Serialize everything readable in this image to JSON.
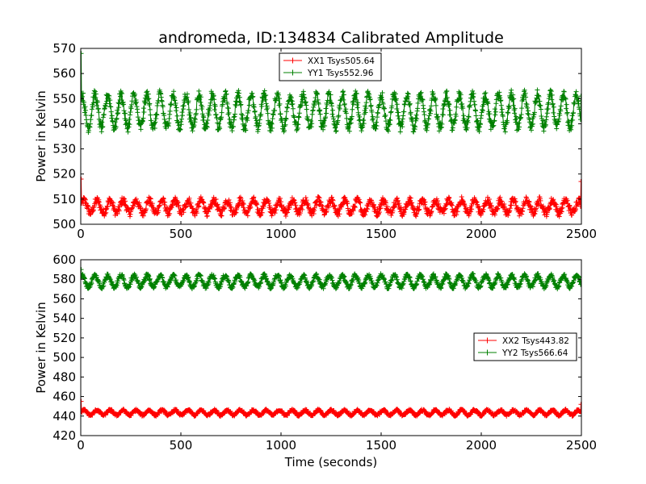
{
  "figure": {
    "title": "andromeda, ID:134834 Calibrated Amplitude",
    "xlabel": "Time (seconds)"
  },
  "chart_data": [
    {
      "type": "line",
      "title": "andromeda, ID:134834 Calibrated Amplitude",
      "xlabel": "",
      "ylabel": "Power in Kelvin",
      "xlim": [
        0,
        2500
      ],
      "ylim": [
        500,
        570
      ],
      "xticks": [
        "0",
        "500",
        "1000",
        "1500",
        "2000",
        "2500"
      ],
      "yticks": [
        "500",
        "510",
        "520",
        "530",
        "540",
        "550",
        "560",
        "570"
      ],
      "legend_position": "upper center",
      "marker": "+",
      "series": [
        {
          "name": "XX1 Tsys505.64",
          "color": "#ff0000",
          "mean": 507,
          "amplitude": 2.5,
          "period_s": 65,
          "noise": 1.5,
          "start_value": 518,
          "end_value": 517
        },
        {
          "name": "YY1 Tsys552.96",
          "color": "#008000",
          "mean": 545,
          "amplitude": 6.5,
          "period_s": 65,
          "noise": 2.0,
          "start_value": 568,
          "end_value": 551
        }
      ]
    },
    {
      "type": "line",
      "title": "",
      "xlabel": "Time (seconds)",
      "ylabel": "Power in Kelvin",
      "xlim": [
        0,
        2500
      ],
      "ylim": [
        420,
        600
      ],
      "xticks": [
        "0",
        "500",
        "1000",
        "1500",
        "2000",
        "2500"
      ],
      "yticks": [
        "420",
        "440",
        "460",
        "480",
        "500",
        "520",
        "540",
        "560",
        "580",
        "600"
      ],
      "legend_position": "center right",
      "marker": "+",
      "series": [
        {
          "name": "XX2 Tsys443.82",
          "color": "#ff0000",
          "mean": 443.5,
          "amplitude": 2.5,
          "period_s": 65,
          "noise": 1.2,
          "start_value": 455,
          "end_value": 452
        },
        {
          "name": "YY2 Tsys566.64",
          "color": "#008000",
          "mean": 578,
          "amplitude": 6.0,
          "period_s": 65,
          "noise": 2.0,
          "start_value": 590,
          "end_value": 575
        }
      ]
    }
  ]
}
